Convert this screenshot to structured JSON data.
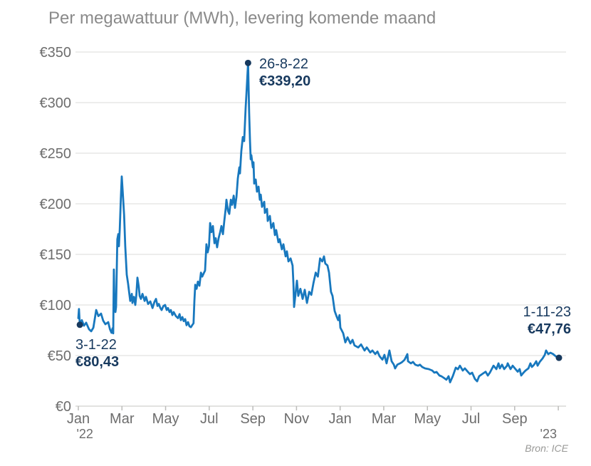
{
  "title": "Per megawattuur (MWh), levering komende maand",
  "source": "Bron: ICE",
  "colors": {
    "line": "#1878be",
    "marker": "#17395e",
    "annotation_text": "#17395e",
    "title_text": "#8a8a8a",
    "axis_text": "#6d6d6d",
    "gridline": "#e7e7e5",
    "axis_line": "#d8d8d6",
    "tick": "#bcbcba",
    "background": "#ffffff"
  },
  "chart_data": {
    "type": "line",
    "title": "Per megawattuur (MWh), levering komende maand",
    "ylabel": "",
    "xlabel": "",
    "currency": "EUR",
    "ylim": [
      0,
      350
    ],
    "grid": "horizontal",
    "legend": "none",
    "y_ticks": [
      {
        "v": 0,
        "label": "€0"
      },
      {
        "v": 50,
        "label": "€50"
      },
      {
        "v": 100,
        "label": "€100"
      },
      {
        "v": 150,
        "label": "€150"
      },
      {
        "v": 200,
        "label": "€200"
      },
      {
        "v": 250,
        "label": "€250"
      },
      {
        "v": 300,
        "label": "€300"
      },
      {
        "v": 350,
        "label": "€350"
      }
    ],
    "x_ticks": [
      {
        "m": 0,
        "label": "Jan"
      },
      {
        "m": 2,
        "label": "Mar"
      },
      {
        "m": 4,
        "label": "May"
      },
      {
        "m": 6,
        "label": "Jul"
      },
      {
        "m": 8,
        "label": "Sep"
      },
      {
        "m": 10,
        "label": "Nov"
      },
      {
        "m": 12,
        "label": "Jan"
      },
      {
        "m": 14,
        "label": "Mar"
      },
      {
        "m": 16,
        "label": "May"
      },
      {
        "m": 18,
        "label": "Jul"
      },
      {
        "m": 20,
        "label": "Sep"
      },
      {
        "m": 22,
        "label": ""
      }
    ],
    "year_labels": [
      {
        "m": 0.3,
        "label": "'22"
      },
      {
        "m": 21.55,
        "label": "'23"
      }
    ],
    "annotations": [
      {
        "date": "3-1-22",
        "value_label": "€80,43",
        "m": 0.07,
        "v": 80.43
      },
      {
        "date": "26-8-22",
        "value_label": "€339,20",
        "m": 7.78,
        "v": 339.2
      },
      {
        "date": "1-11-23",
        "value_label": "€47,76",
        "m": 22.03,
        "v": 47.76
      }
    ],
    "points": [
      [
        0.0,
        87
      ],
      [
        0.03,
        96
      ],
      [
        0.07,
        80.43
      ],
      [
        0.16,
        85
      ],
      [
        0.26,
        79.5
      ],
      [
        0.36,
        82.5
      ],
      [
        0.49,
        76
      ],
      [
        0.59,
        74
      ],
      [
        0.69,
        77.5
      ],
      [
        0.82,
        95
      ],
      [
        0.92,
        89
      ],
      [
        1.04,
        91.5
      ],
      [
        1.14,
        84.5
      ],
      [
        1.24,
        81
      ],
      [
        1.37,
        83
      ],
      [
        1.45,
        76
      ],
      [
        1.52,
        72.5
      ],
      [
        1.57,
        77
      ],
      [
        1.6,
        72
      ],
      [
        1.63,
        135
      ],
      [
        1.66,
        97
      ],
      [
        1.7,
        93
      ],
      [
        1.73,
        98
      ],
      [
        1.79,
        165
      ],
      [
        1.83,
        170
      ],
      [
        1.86,
        158
      ],
      [
        1.9,
        175
      ],
      [
        1.95,
        205
      ],
      [
        1.99,
        227
      ],
      [
        2.04,
        210
      ],
      [
        2.1,
        189
      ],
      [
        2.15,
        158
      ],
      [
        2.22,
        130
      ],
      [
        2.28,
        121
      ],
      [
        2.32,
        114
      ],
      [
        2.38,
        104
      ],
      [
        2.45,
        111
      ],
      [
        2.48,
        102
      ],
      [
        2.55,
        108
      ],
      [
        2.61,
        100
      ],
      [
        2.66,
        110
      ],
      [
        2.71,
        127
      ],
      [
        2.77,
        118
      ],
      [
        2.81,
        109
      ],
      [
        2.87,
        106
      ],
      [
        2.94,
        111
      ],
      [
        3.04,
        104
      ],
      [
        3.1,
        108
      ],
      [
        3.2,
        101
      ],
      [
        3.3,
        103.5
      ],
      [
        3.4,
        97
      ],
      [
        3.49,
        103
      ],
      [
        3.56,
        106
      ],
      [
        3.63,
        99
      ],
      [
        3.69,
        101
      ],
      [
        3.76,
        97
      ],
      [
        3.82,
        95
      ],
      [
        3.9,
        99
      ],
      [
        3.98,
        100
      ],
      [
        4.05,
        95
      ],
      [
        4.11,
        97
      ],
      [
        4.18,
        93
      ],
      [
        4.24,
        95
      ],
      [
        4.31,
        90
      ],
      [
        4.37,
        93
      ],
      [
        4.47,
        89
      ],
      [
        4.57,
        87
      ],
      [
        4.64,
        91
      ],
      [
        4.7,
        85
      ],
      [
        4.77,
        88
      ],
      [
        4.83,
        84
      ],
      [
        4.9,
        86
      ],
      [
        4.96,
        80
      ],
      [
        5.03,
        83
      ],
      [
        5.09,
        79
      ],
      [
        5.16,
        78
      ],
      [
        5.22,
        80
      ],
      [
        5.28,
        82
      ],
      [
        5.32,
        104
      ],
      [
        5.36,
        120
      ],
      [
        5.42,
        116
      ],
      [
        5.48,
        123
      ],
      [
        5.55,
        119
      ],
      [
        5.62,
        132
      ],
      [
        5.68,
        128
      ],
      [
        5.74,
        131
      ],
      [
        5.81,
        134
      ],
      [
        5.87,
        160
      ],
      [
        5.93,
        152
      ],
      [
        5.99,
        158
      ],
      [
        6.04,
        181
      ],
      [
        6.1,
        172
      ],
      [
        6.17,
        178
      ],
      [
        6.24,
        161
      ],
      [
        6.3,
        166
      ],
      [
        6.36,
        157
      ],
      [
        6.43,
        166
      ],
      [
        6.5,
        172
      ],
      [
        6.56,
        178
      ],
      [
        6.63,
        170
      ],
      [
        6.69,
        183
      ],
      [
        6.76,
        196
      ],
      [
        6.79,
        204
      ],
      [
        6.86,
        193
      ],
      [
        6.92,
        190
      ],
      [
        6.99,
        204
      ],
      [
        7.05,
        199
      ],
      [
        7.12,
        208
      ],
      [
        7.18,
        196
      ],
      [
        7.25,
        207
      ],
      [
        7.31,
        225
      ],
      [
        7.38,
        236
      ],
      [
        7.41,
        230
      ],
      [
        7.47,
        252
      ],
      [
        7.54,
        266
      ],
      [
        7.6,
        262
      ],
      [
        7.67,
        295
      ],
      [
        7.71,
        310
      ],
      [
        7.78,
        339.2
      ],
      [
        7.83,
        290
      ],
      [
        7.87,
        262
      ],
      [
        7.9,
        244
      ],
      [
        7.93,
        248
      ],
      [
        8.0,
        236
      ],
      [
        8.03,
        241
      ],
      [
        8.06,
        220
      ],
      [
        8.13,
        224
      ],
      [
        8.19,
        212
      ],
      [
        8.26,
        217
      ],
      [
        8.32,
        204
      ],
      [
        8.36,
        209
      ],
      [
        8.42,
        197
      ],
      [
        8.52,
        202
      ],
      [
        8.55,
        191
      ],
      [
        8.65,
        195
      ],
      [
        8.68,
        183
      ],
      [
        8.78,
        188
      ],
      [
        8.84,
        176
      ],
      [
        8.94,
        181
      ],
      [
        9.01,
        169
      ],
      [
        9.07,
        174
      ],
      [
        9.17,
        162
      ],
      [
        9.23,
        165
      ],
      [
        9.33,
        155
      ],
      [
        9.4,
        160
      ],
      [
        9.5,
        148
      ],
      [
        9.56,
        153
      ],
      [
        9.63,
        143
      ],
      [
        9.73,
        146
      ],
      [
        9.82,
        139
      ],
      [
        9.86,
        121
      ],
      [
        9.89,
        98
      ],
      [
        9.95,
        110
      ],
      [
        10.02,
        124
      ],
      [
        10.08,
        109
      ],
      [
        10.18,
        116
      ],
      [
        10.28,
        106
      ],
      [
        10.38,
        115
      ],
      [
        10.48,
        102
      ],
      [
        10.58,
        113
      ],
      [
        10.68,
        110
      ],
      [
        10.78,
        122
      ],
      [
        10.88,
        132
      ],
      [
        10.98,
        128
      ],
      [
        11.08,
        146
      ],
      [
        11.18,
        143
      ],
      [
        11.26,
        148
      ],
      [
        11.32,
        141
      ],
      [
        11.42,
        139
      ],
      [
        11.49,
        132
      ],
      [
        11.58,
        113
      ],
      [
        11.65,
        109
      ],
      [
        11.75,
        94
      ],
      [
        11.85,
        88
      ],
      [
        11.91,
        85
      ],
      [
        11.97,
        90
      ],
      [
        12.01,
        77.5
      ],
      [
        12.14,
        72
      ],
      [
        12.24,
        63
      ],
      [
        12.34,
        68
      ],
      [
        12.47,
        62
      ],
      [
        12.57,
        65.5
      ],
      [
        12.66,
        60
      ],
      [
        12.83,
        58
      ],
      [
        12.96,
        61
      ],
      [
        13.12,
        55
      ],
      [
        13.22,
        58
      ],
      [
        13.38,
        53
      ],
      [
        13.48,
        55
      ],
      [
        13.61,
        51.5
      ],
      [
        13.71,
        54
      ],
      [
        13.81,
        49.3
      ],
      [
        13.94,
        46
      ],
      [
        14.03,
        50.7
      ],
      [
        14.13,
        42.3
      ],
      [
        14.26,
        55
      ],
      [
        14.36,
        44.4
      ],
      [
        14.46,
        41
      ],
      [
        14.52,
        37.3
      ],
      [
        14.62,
        41
      ],
      [
        14.75,
        42.3
      ],
      [
        14.85,
        43.7
      ],
      [
        14.95,
        45.8
      ],
      [
        15.08,
        51.4
      ],
      [
        15.11,
        44.4
      ],
      [
        15.24,
        42.3
      ],
      [
        15.34,
        43.7
      ],
      [
        15.44,
        41
      ],
      [
        15.57,
        40
      ],
      [
        15.66,
        41
      ],
      [
        15.76,
        38.7
      ],
      [
        15.89,
        37.3
      ],
      [
        16.06,
        36.6
      ],
      [
        16.22,
        35.2
      ],
      [
        16.32,
        33.1
      ],
      [
        16.42,
        33.8
      ],
      [
        16.55,
        30.3
      ],
      [
        16.64,
        29.6
      ],
      [
        16.74,
        28.2
      ],
      [
        16.87,
        26.1
      ],
      [
        16.97,
        29.6
      ],
      [
        17.04,
        23.5
      ],
      [
        17.17,
        30
      ],
      [
        17.3,
        38
      ],
      [
        17.4,
        36.5
      ],
      [
        17.49,
        40
      ],
      [
        17.62,
        35.2
      ],
      [
        17.72,
        37.3
      ],
      [
        17.85,
        34
      ],
      [
        17.95,
        31.7
      ],
      [
        18.05,
        33
      ],
      [
        18.18,
        26.8
      ],
      [
        18.28,
        24.6
      ],
      [
        18.37,
        29.6
      ],
      [
        18.51,
        31.7
      ],
      [
        18.67,
        34
      ],
      [
        18.77,
        30.3
      ],
      [
        18.86,
        33
      ],
      [
        19.03,
        40
      ],
      [
        19.16,
        36.6
      ],
      [
        19.26,
        42.3
      ],
      [
        19.32,
        37.3
      ],
      [
        19.42,
        41
      ],
      [
        19.52,
        36.6
      ],
      [
        19.65,
        40
      ],
      [
        19.68,
        42.3
      ],
      [
        19.81,
        36.6
      ],
      [
        19.91,
        40
      ],
      [
        20.01,
        37.3
      ],
      [
        20.14,
        34
      ],
      [
        20.23,
        36.6
      ],
      [
        20.3,
        30.3
      ],
      [
        20.4,
        33
      ],
      [
        20.5,
        35.2
      ],
      [
        20.63,
        37.3
      ],
      [
        20.72,
        42.3
      ],
      [
        20.79,
        38.7
      ],
      [
        20.89,
        41
      ],
      [
        20.99,
        44.4
      ],
      [
        21.05,
        40
      ],
      [
        21.15,
        43.7
      ],
      [
        21.28,
        47.2
      ],
      [
        21.38,
        50.7
      ],
      [
        21.44,
        55
      ],
      [
        21.54,
        51.4
      ],
      [
        21.64,
        52.8
      ],
      [
        21.77,
        51.4
      ],
      [
        21.8,
        50.7
      ],
      [
        21.9,
        49
      ],
      [
        22.03,
        47.76
      ]
    ]
  }
}
